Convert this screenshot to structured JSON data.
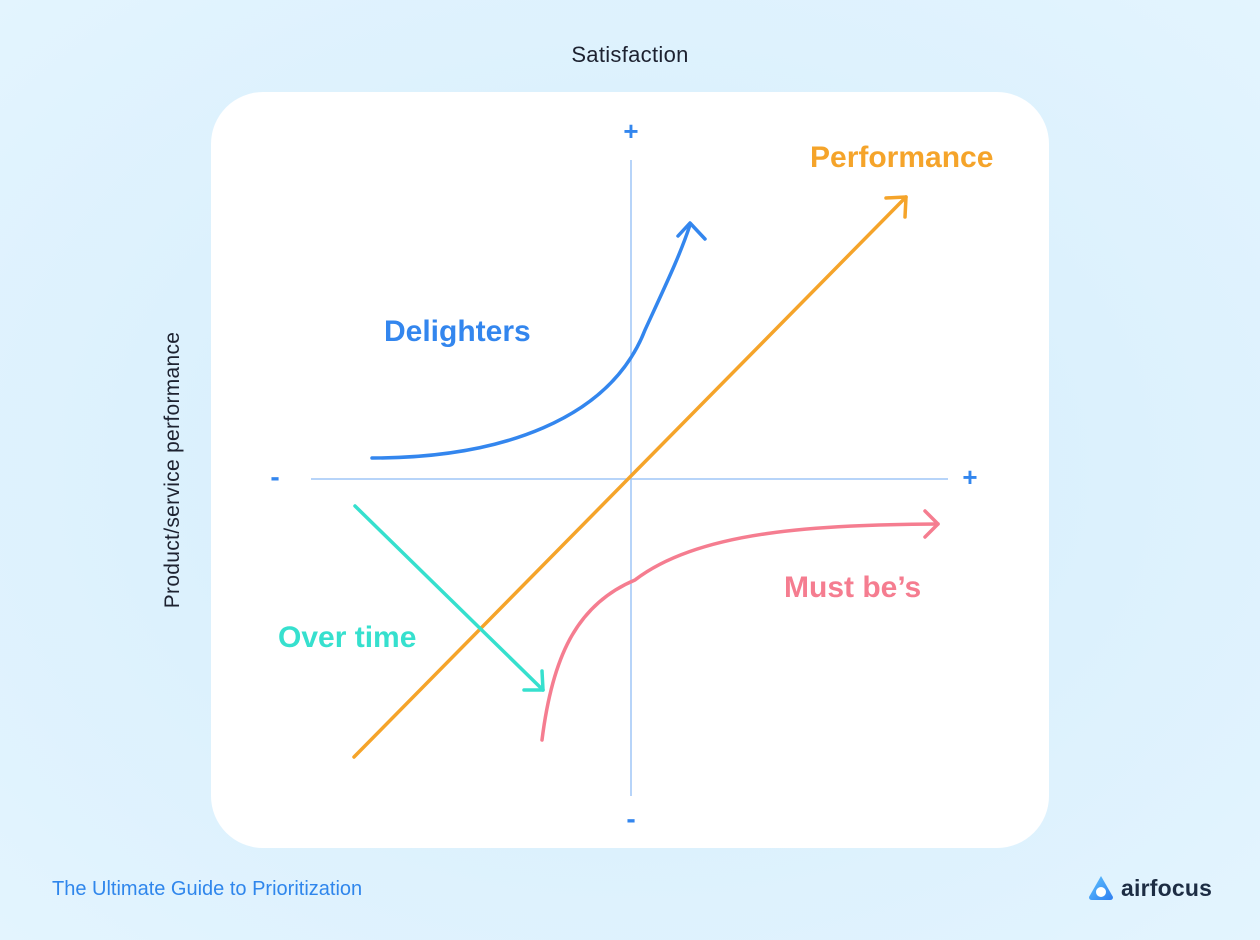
{
  "diagram": {
    "x_axis_label": "Satisfaction",
    "y_axis_label": "Product/service performance",
    "vertical_axis": {
      "top_sign": "+",
      "bottom_sign": "-"
    },
    "horizontal_axis": {
      "left_sign": "-",
      "right_sign": "+"
    },
    "curves": {
      "performance": {
        "label": "Performance",
        "color": "#f5a42a"
      },
      "delighters": {
        "label": "Delighters",
        "color": "#3386ee"
      },
      "must_bes": {
        "label": "Must be’s",
        "color": "#f57d90"
      },
      "over_time": {
        "label": "Over time",
        "color": "#36e0ce"
      }
    },
    "axis_color": "#9fc6f7",
    "sign_color": "#3386ee"
  },
  "footer": {
    "guide_title": "The Ultimate Guide to Prioritization",
    "brand_name": "airfocus",
    "brand_logo_icon": "airfocus-logo-icon"
  }
}
